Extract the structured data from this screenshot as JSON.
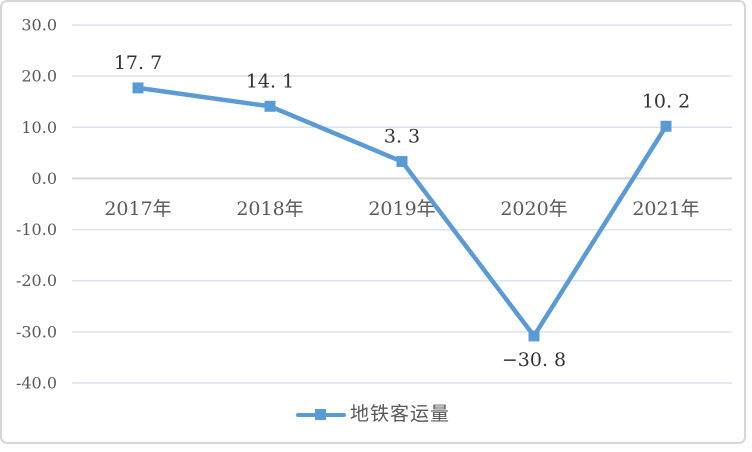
{
  "frame": {
    "border_color": "#d6d6d6",
    "background": "#ffffff"
  },
  "chart_data": {
    "type": "line",
    "title": "",
    "categories": [
      "2017年",
      "2018年",
      "2019年",
      "2020年",
      "2021年"
    ],
    "series": [
      {
        "name": "地铁客运量",
        "values": [
          17.7,
          14.1,
          3.3,
          -30.8,
          10.2
        ],
        "point_labels": [
          "17. 7",
          "14. 1",
          "3. 3",
          "−30. 8",
          "10. 2"
        ],
        "color": "#5b9bd5",
        "marker": "square"
      }
    ],
    "ylim": [
      -40,
      30
    ],
    "ytick_step": 10,
    "ytick_labels": [
      "30.0",
      "20.0",
      "10.0",
      "0.0",
      "-10.0",
      "-20.0",
      "-30.0",
      "-40.0"
    ],
    "grid": true,
    "xlabel": "",
    "ylabel": "",
    "legend": {
      "position": "bottom",
      "label": "地铁客运量"
    },
    "colors": {
      "series": "#5b9bd5",
      "gridline": "#d9e2f1",
      "zero_line": "#d6d6d6",
      "axis_text": "#595959",
      "data_label_text": "#333333"
    }
  }
}
